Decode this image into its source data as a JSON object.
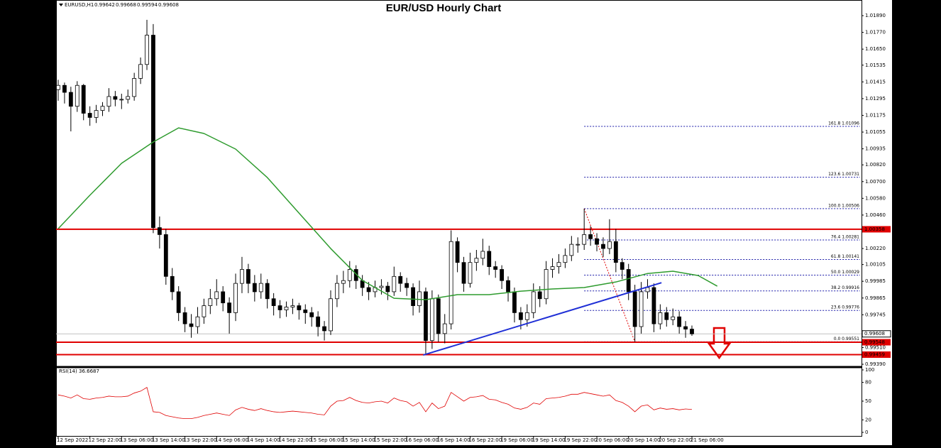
{
  "chart_data": {
    "type": "candlestick",
    "title": "EUR/USD Hourly Chart",
    "symbol": "EURUSD,H1",
    "x": [
      "12 Sep 2022",
      null,
      null,
      null,
      null,
      "12 Sep 22:00",
      null,
      null,
      null,
      null,
      "13 Sep 06:00",
      null,
      null,
      null,
      null,
      "13 Sep 14:00",
      null,
      null,
      null,
      null,
      "13 Sep 22:00",
      null,
      null,
      null,
      null,
      "14 Sep 06:00",
      null,
      null,
      null,
      null,
      "14 Sep 14:00",
      null,
      null,
      null,
      null,
      "14 Sep 22:00",
      null,
      null,
      null,
      null,
      "15 Sep 06:00",
      null,
      null,
      null,
      null,
      "15 Sep 14:00",
      null,
      null,
      null,
      null,
      "15 Sep 22:00",
      null,
      null,
      null,
      null,
      "16 Sep 06:00",
      null,
      null,
      null,
      null,
      "16 Sep 14:00",
      null,
      null,
      null,
      null,
      "16 Sep 22:00",
      null,
      null,
      null,
      null,
      "19 Sep 06:00",
      null,
      null,
      null,
      null,
      "19 Sep 14:00",
      null,
      null,
      null,
      null,
      "19 Sep 22:00",
      null,
      null,
      null,
      null,
      "20 Sep 06:00",
      null,
      null,
      null,
      null,
      "20 Sep 14:00",
      null,
      null,
      null,
      null,
      "20 Sep 22:00",
      null,
      null,
      null,
      null,
      "21 Sep 06:00"
    ],
    "ohlc": [
      [
        1.0136,
        1.0143,
        1.0128,
        1.0139
      ],
      [
        1.0139,
        1.0141,
        1.0126,
        1.0134
      ],
      [
        1.0134,
        1.0138,
        1.0106,
        1.0124
      ],
      [
        1.0124,
        1.0142,
        1.012,
        1.0139
      ],
      [
        1.0139,
        1.014,
        1.0114,
        1.0119
      ],
      [
        1.0119,
        1.0124,
        1.011,
        1.0116
      ],
      [
        1.0116,
        1.0125,
        1.0112,
        1.0121
      ],
      [
        1.0121,
        1.0127,
        1.0117,
        1.0124
      ],
      [
        1.0124,
        1.0137,
        1.012,
        1.0131
      ],
      [
        1.0131,
        1.0135,
        1.0124,
        1.0129
      ],
      [
        1.0129,
        1.0133,
        1.0122,
        1.0129
      ],
      [
        1.0129,
        1.0136,
        1.0126,
        1.0131
      ],
      [
        1.0131,
        1.0148,
        1.0128,
        1.0144
      ],
      [
        1.0144,
        1.0159,
        1.014,
        1.0154
      ],
      [
        1.0154,
        1.0186,
        1.015,
        1.0175
      ],
      [
        1.0175,
        1.0183,
        1.0033,
        1.0037
      ],
      [
        1.0037,
        1.0045,
        1.0022,
        1.0032
      ],
      [
        1.0032,
        1.0036,
        0.9996,
        1.0002
      ],
      [
        1.0002,
        1.0008,
        0.9985,
        0.9991
      ],
      [
        0.9991,
        0.9995,
        0.997,
        0.9976
      ],
      [
        0.9976,
        0.998,
        0.9962,
        0.9968
      ],
      [
        0.9968,
        0.9975,
        0.9958,
        0.9966
      ],
      [
        0.9966,
        0.998,
        0.9961,
        0.9973
      ],
      [
        0.9973,
        0.9986,
        0.9968,
        0.9981
      ],
      [
        0.9981,
        0.9993,
        0.9975,
        0.9986
      ],
      [
        0.9986,
        1.0,
        0.9981,
        0.9991
      ],
      [
        0.9991,
        0.9995,
        0.9977,
        0.9983
      ],
      [
        0.9983,
        0.9987,
        0.9961,
        0.9976
      ],
      [
        0.9976,
        1.0004,
        0.997,
        0.9997
      ],
      [
        0.9997,
        1.0016,
        0.999,
        1.0007
      ],
      [
        1.0007,
        1.0011,
        0.999,
        0.9997
      ],
      [
        0.9997,
        1.0003,
        0.9984,
        0.9991
      ],
      [
        0.9991,
        1.0004,
        0.9986,
        0.9997
      ],
      [
        0.9997,
        1.0,
        0.9979,
        0.9986
      ],
      [
        0.9986,
        0.999,
        0.9974,
        0.9981
      ],
      [
        0.9981,
        0.9985,
        0.9972,
        0.9978
      ],
      [
        0.9978,
        0.9984,
        0.9973,
        0.998
      ],
      [
        0.998,
        0.9986,
        0.9975,
        0.9981
      ],
      [
        0.9981,
        0.9983,
        0.9971,
        0.9978
      ],
      [
        0.9978,
        0.9982,
        0.9968,
        0.9976
      ],
      [
        0.9976,
        0.998,
        0.9966,
        0.9973
      ],
      [
        0.9973,
        0.9977,
        0.9959,
        0.9966
      ],
      [
        0.9966,
        0.997,
        0.9956,
        0.9963
      ],
      [
        0.9963,
        0.9992,
        0.996,
        0.9986
      ],
      [
        0.9986,
        1.0003,
        0.998,
        0.9997
      ],
      [
        0.9997,
        1.0006,
        0.999,
        0.9999
      ],
      [
        0.9999,
        1.0013,
        0.9994,
        1.0007
      ],
      [
        1.0007,
        1.001,
        0.9993,
        0.9999
      ],
      [
        0.9999,
        1.0003,
        0.9988,
        0.9994
      ],
      [
        0.9994,
        0.9998,
        0.9985,
        0.9991
      ],
      [
        0.9991,
        0.9999,
        0.9987,
        0.9994
      ],
      [
        0.9994,
        1.0,
        0.9989,
        0.9995
      ],
      [
        0.9995,
        0.9998,
        0.9985,
        0.9991
      ],
      [
        0.9991,
        1.0009,
        0.9988,
        1.0002
      ],
      [
        1.0002,
        1.0005,
        0.9991,
        0.9997
      ],
      [
        0.9997,
        1.0001,
        0.9988,
        0.9994
      ],
      [
        0.9994,
        0.9997,
        0.9974,
        0.9981
      ],
      [
        0.9981,
        0.9999,
        0.9976,
        0.9991
      ],
      [
        0.9991,
        0.9994,
        0.9946,
        0.9956
      ],
      [
        0.9956,
        0.9992,
        0.995,
        0.9986
      ],
      [
        0.9986,
        0.9989,
        0.9955,
        0.9961
      ],
      [
        0.9961,
        0.9975,
        0.9954,
        0.9968
      ],
      [
        0.9968,
        1.0035,
        0.9964,
        1.0027
      ],
      [
        1.0027,
        1.003,
        1.0005,
        1.0012
      ],
      [
        1.0012,
        1.0016,
        0.9991,
        0.9997
      ],
      [
        0.9997,
        1.0019,
        0.9994,
        1.0012
      ],
      [
        1.0012,
        1.0021,
        1.0006,
        1.0015
      ],
      [
        1.0015,
        1.0029,
        1.001,
        1.002
      ],
      [
        1.002,
        1.0024,
        1.0003,
        1.0009
      ],
      [
        1.0009,
        1.0013,
        1.0001,
        1.0007
      ],
      [
        1.0007,
        1.001,
        0.9993,
        0.9999
      ],
      [
        0.9999,
        1.0002,
        0.9984,
        0.9991
      ],
      [
        0.9991,
        0.9994,
        0.9969,
        0.9976
      ],
      [
        0.9976,
        0.998,
        0.9964,
        0.9971
      ],
      [
        0.9971,
        0.9982,
        0.9966,
        0.9976
      ],
      [
        0.9976,
        0.9997,
        0.9972,
        0.9991
      ],
      [
        0.9991,
        0.9995,
        0.998,
        0.9986
      ],
      [
        0.9986,
        1.0013,
        0.9982,
        1.0007
      ],
      [
        1.0007,
        1.0015,
        1.0001,
        1.0009
      ],
      [
        1.0009,
        1.0018,
        1.0004,
        1.0012
      ],
      [
        1.0012,
        1.0022,
        1.0008,
        1.0017
      ],
      [
        1.0017,
        1.0031,
        1.0013,
        1.0025
      ],
      [
        1.0025,
        1.003,
        1.0019,
        1.0025
      ],
      [
        1.0025,
        1.00506,
        1.0021,
        1.0032
      ],
      [
        1.0032,
        1.0038,
        1.0024,
        1.0029
      ],
      [
        1.0029,
        1.0033,
        1.002,
        1.0025
      ],
      [
        1.0025,
        1.003,
        1.0016,
        1.0022
      ],
      [
        1.0022,
        1.0043,
        1.0018,
        1.0027
      ],
      [
        1.0027,
        1.0036,
        1.0005,
        1.0012
      ],
      [
        1.0012,
        1.0015,
        1.0,
        1.0007
      ],
      [
        1.0007,
        1.0011,
        0.9985,
        0.9991
      ],
      [
        0.9991,
        0.9996,
        0.99551,
        0.9966
      ],
      [
        0.9966,
        0.9998,
        0.9961,
        0.9991
      ],
      [
        0.9991,
        1.0,
        0.9986,
        0.9994
      ],
      [
        0.9994,
        0.9997,
        0.9962,
        0.9968
      ],
      [
        0.9968,
        0.9982,
        0.9964,
        0.9976
      ],
      [
        0.9976,
        0.998,
        0.9966,
        0.9971
      ],
      [
        0.9971,
        0.9979,
        0.9967,
        0.9973
      ],
      [
        0.9973,
        0.9977,
        0.9961,
        0.9966
      ],
      [
        0.9966,
        0.997,
        0.9958,
        0.99642
      ],
      [
        0.99642,
        0.99668,
        0.99594,
        0.99608
      ]
    ],
    "ylim": [
      0.99375,
      1.01992
    ],
    "yticks": [
      {
        "value": 1.0189,
        "label": "1.01890"
      },
      {
        "value": 1.0177,
        "label": "1.01770"
      },
      {
        "value": 1.0165,
        "label": "1.01650"
      },
      {
        "value": 1.01535,
        "label": "1.01535"
      },
      {
        "value": 1.01415,
        "label": "1.01415"
      },
      {
        "value": 1.01295,
        "label": "1.01295"
      },
      {
        "value": 1.01175,
        "label": "1.01175"
      },
      {
        "value": 1.01055,
        "label": "1.01055"
      },
      {
        "value": 1.00935,
        "label": "1.00935"
      },
      {
        "value": 1.0082,
        "label": "1.00820"
      },
      {
        "value": 1.007,
        "label": "1.00700"
      },
      {
        "value": 1.0058,
        "label": "1.00580"
      },
      {
        "value": 1.0046,
        "label": "1.00460"
      },
      {
        "value": 1.0022,
        "label": "1.00220"
      },
      {
        "value": 1.00105,
        "label": "1.00105"
      },
      {
        "value": 0.99985,
        "label": "0.99985"
      },
      {
        "value": 0.99865,
        "label": "0.99865"
      },
      {
        "value": 0.99745,
        "label": "0.99745"
      },
      {
        "value": 0.9951,
        "label": "0.99510"
      },
      {
        "value": 0.9939,
        "label": "0.99390"
      }
    ],
    "ma": {
      "color": "#2e9b2e",
      "x": [
        0,
        5,
        10,
        15,
        19,
        23,
        28,
        33,
        38,
        43,
        48,
        53,
        58,
        63,
        68,
        73,
        78,
        83,
        88,
        93,
        97,
        101,
        104
      ],
      "values": [
        1.00362,
        1.00602,
        1.00831,
        1.00984,
        1.01085,
        1.01045,
        1.00933,
        1.00729,
        1.00474,
        1.0022,
        0.99991,
        0.99863,
        0.99853,
        0.99889,
        0.99889,
        0.99914,
        0.9993,
        0.9994,
        0.9998,
        1.00041,
        1.00057,
        1.00026,
        0.9995
      ]
    },
    "trendline": {
      "color": "#1f2fd6",
      "x": [
        57.6,
        95.2
      ],
      "values": [
        0.99456,
        0.99975
      ]
    },
    "hlines": [
      {
        "value": 1.00358,
        "color": "#e00000"
      },
      {
        "value": 0.99548,
        "color": "#e00000"
      },
      {
        "value": 0.99459,
        "color": "#e00000"
      }
    ],
    "fib": {
      "color": "#1a1aa8",
      "anchor_color": "#e00000",
      "x": [
        83,
        91
      ],
      "values": [
        1.00506,
        0.99551
      ],
      "levels": [
        {
          "value": 1.01096,
          "label": "161.8 1.01096"
        },
        {
          "value": 1.00731,
          "label": "123.6 1.00731"
        },
        {
          "value": 1.00506,
          "label": "100.0 1.00506"
        },
        {
          "value": 1.00281,
          "label": "76.4 1.00281"
        },
        {
          "value": 1.00141,
          "label": "61.8 1.00141"
        },
        {
          "value": 1.00029,
          "label": "50.0 1.00029"
        },
        {
          "value": 0.99916,
          "label": "38.2 0.99916"
        },
        {
          "value": 0.99776,
          "label": "23.6 0.99776"
        },
        {
          "value": 0.99551,
          "label": "0.0 0.99551"
        }
      ]
    },
    "rsi": {
      "name": "RSI(14)",
      "color": "#e00000",
      "ylim": [
        0,
        100
      ],
      "yticks": [
        100,
        80,
        50,
        20,
        0
      ],
      "values": [
        60,
        58,
        55,
        60,
        54,
        53,
        55,
        56,
        58,
        57,
        57,
        58,
        63,
        66,
        72,
        33,
        32,
        27,
        25,
        23,
        22,
        22,
        24,
        27,
        29,
        31,
        29,
        27,
        36,
        40,
        37,
        35,
        38,
        35,
        33,
        32,
        33,
        34,
        33,
        32,
        31,
        29,
        28,
        42,
        50,
        51,
        56,
        51,
        48,
        47,
        49,
        50,
        47,
        55,
        51,
        49,
        42,
        48,
        33,
        47,
        38,
        42,
        64,
        57,
        50,
        56,
        57,
        59,
        53,
        52,
        48,
        45,
        39,
        37,
        40,
        47,
        45,
        54,
        55,
        56,
        58,
        61,
        61,
        64,
        62,
        60,
        58,
        60,
        51,
        48,
        42,
        33,
        42,
        44,
        36,
        39,
        37,
        38,
        36,
        37.5,
        36.6687
      ]
    }
  }
}
